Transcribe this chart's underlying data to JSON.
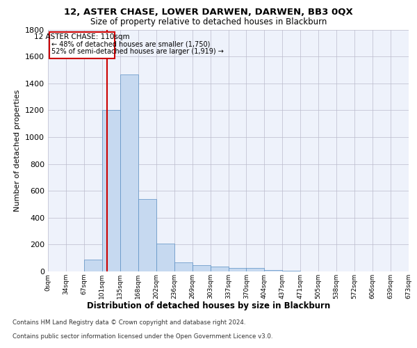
{
  "title": "12, ASTER CHASE, LOWER DARWEN, DARWEN, BB3 0QX",
  "subtitle": "Size of property relative to detached houses in Blackburn",
  "xlabel": "Distribution of detached houses by size in Blackburn",
  "ylabel": "Number of detached properties",
  "bin_labels": [
    "0sqm",
    "34sqm",
    "67sqm",
    "101sqm",
    "135sqm",
    "168sqm",
    "202sqm",
    "236sqm",
    "269sqm",
    "303sqm",
    "337sqm",
    "370sqm",
    "404sqm",
    "437sqm",
    "471sqm",
    "505sqm",
    "538sqm",
    "572sqm",
    "606sqm",
    "639sqm",
    "673sqm"
  ],
  "bar_values": [
    0,
    0,
    90,
    1200,
    1465,
    540,
    205,
    65,
    47,
    37,
    28,
    28,
    8,
    4,
    2,
    1,
    0,
    0,
    0,
    0
  ],
  "bar_color": "#c6d9f0",
  "bar_edge_color": "#5a8fc3",
  "property_label": "12 ASTER CHASE: 110sqm",
  "annotation_line1": "← 48% of detached houses are smaller (1,750)",
  "annotation_line2": "52% of semi-detached houses are larger (1,919) →",
  "vline_color": "#cc0000",
  "footer_line1": "Contains HM Land Registry data © Crown copyright and database right 2024.",
  "footer_line2": "Contains public sector information licensed under the Open Government Licence v3.0.",
  "ylim": [
    0,
    1800
  ],
  "yticks": [
    0,
    200,
    400,
    600,
    800,
    1000,
    1200,
    1400,
    1600,
    1800
  ],
  "background_color": "#eef2fb",
  "grid_color": "#bbbbcc"
}
